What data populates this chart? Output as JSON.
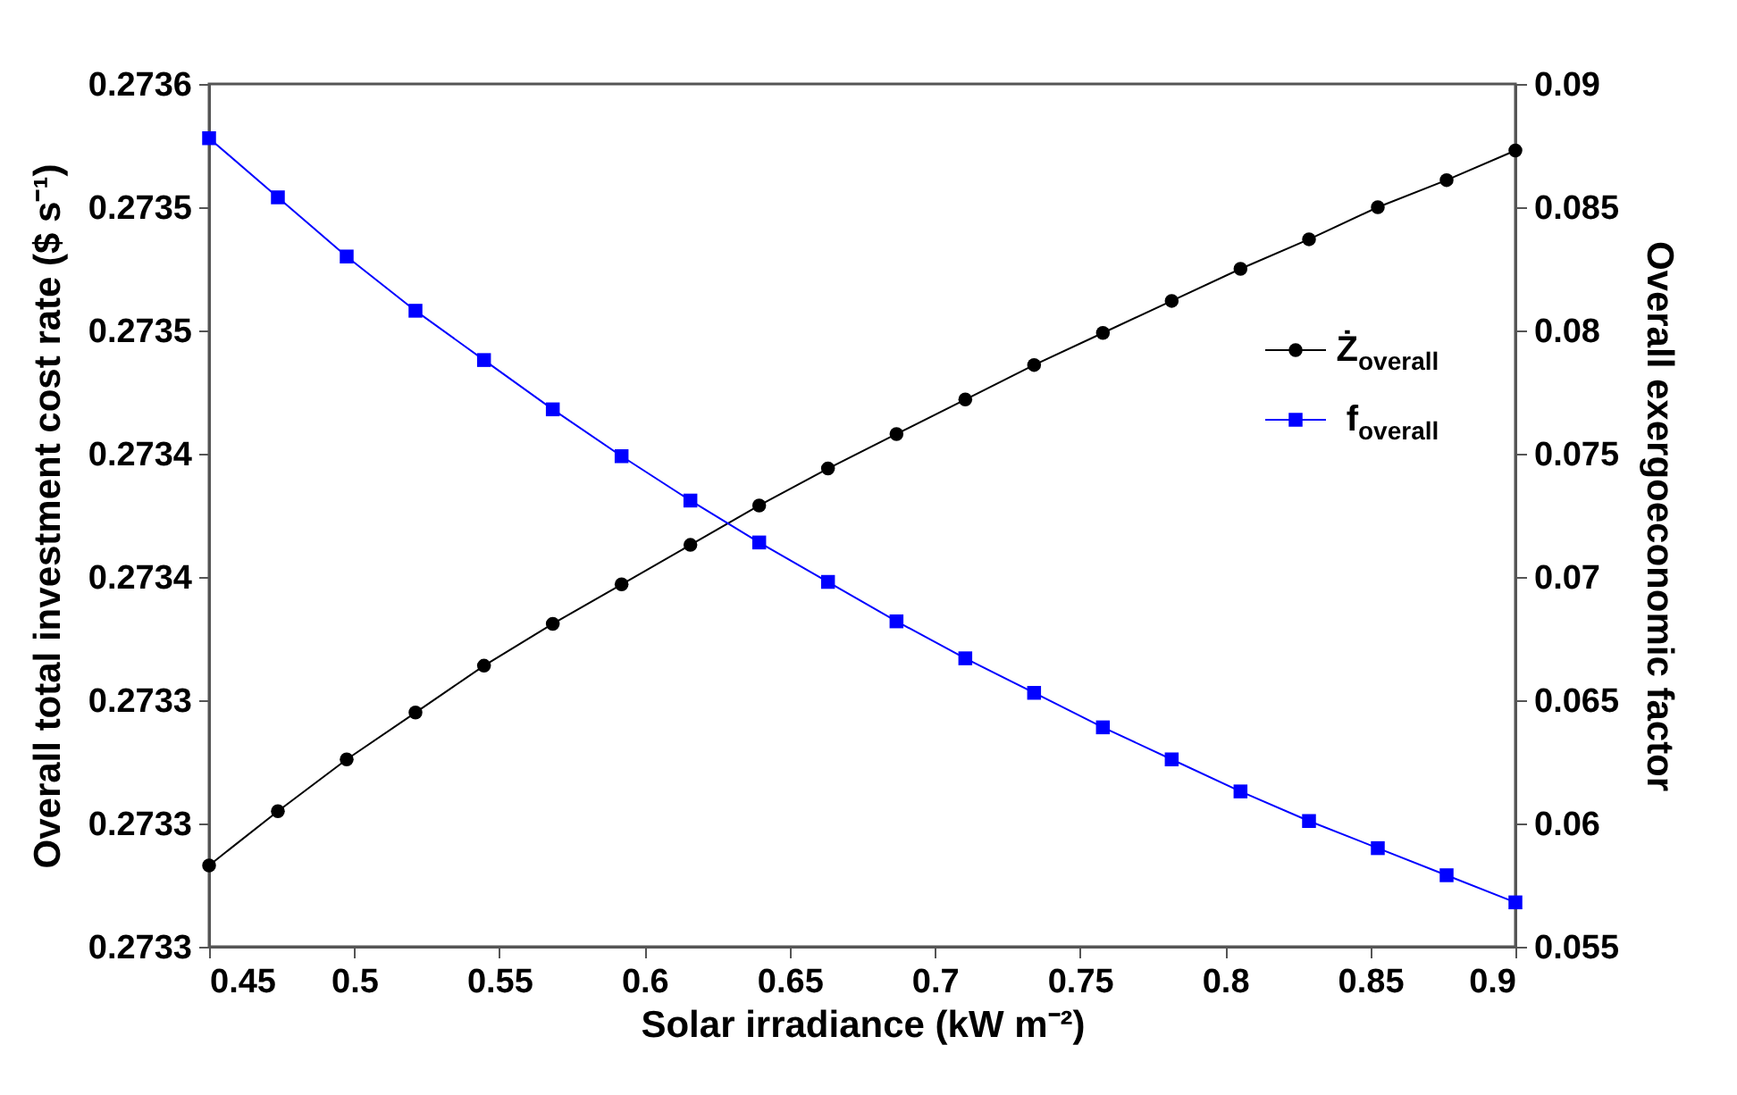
{
  "chart_data": {
    "type": "line",
    "xlabel": "Solar irradiance (kW m⁻²)",
    "ylabel": "Overall total investment cost rate ($ s⁻¹)",
    "y2label": "Overall exergoeconomic factor",
    "x": [
      0.45,
      0.4737,
      0.4974,
      0.5211,
      0.5447,
      0.5684,
      0.5921,
      0.6158,
      0.6395,
      0.6632,
      0.6868,
      0.7105,
      0.7342,
      0.7579,
      0.7816,
      0.8053,
      0.8289,
      0.8526,
      0.8763,
      0.9
    ],
    "series": [
      {
        "name": "Ż$_{overall}$",
        "color": "#000000",
        "marker": "circle",
        "values": [
          0.273283,
          0.273305,
          0.273326,
          0.273345,
          0.273364,
          0.273381,
          0.273397,
          0.273413,
          0.273429,
          0.273444,
          0.273458,
          0.273472,
          0.273486,
          0.273499,
          0.273512,
          0.273525,
          0.273537,
          0.27355,
          0.273561,
          0.273573
        ]
      },
      {
        "name": "f$_{overall}$",
        "color": "#0000ff",
        "marker": "square",
        "axis": "y2",
        "values": [
          0.0878,
          0.0854,
          0.083,
          0.0808,
          0.0788,
          0.0768,
          0.0749,
          0.0731,
          0.0714,
          0.0698,
          0.0682,
          0.0667,
          0.0653,
          0.0639,
          0.0626,
          0.0613,
          0.0601,
          0.059,
          0.0579,
          0.0568
        ]
      }
    ],
    "xlim": [
      0.45,
      0.9
    ],
    "xticks": [
      0.45,
      0.5,
      0.55,
      0.6,
      0.65,
      0.7,
      0.75,
      0.8,
      0.85,
      0.9
    ],
    "ylim": [
      0.27325,
      0.2736
    ],
    "yticks": [
      {
        "value": 0.27325,
        "label": "0.2733"
      },
      {
        "value": 0.2733,
        "label": "0.2733"
      },
      {
        "value": 0.27335,
        "label": "0.2733"
      },
      {
        "value": 0.2734,
        "label": "0.2734"
      },
      {
        "value": 0.27345,
        "label": "0.2734"
      },
      {
        "value": 0.2735,
        "label": "0.2735"
      },
      {
        "value": 0.27355,
        "label": "0.2735"
      },
      {
        "value": 0.2736,
        "label": "0.2736"
      }
    ],
    "y2lim": [
      0.055,
      0.09
    ],
    "y2ticks": [
      0.055,
      0.06,
      0.065,
      0.07,
      0.075,
      0.08,
      0.085,
      0.09
    ],
    "grid": false,
    "legend": "right"
  }
}
